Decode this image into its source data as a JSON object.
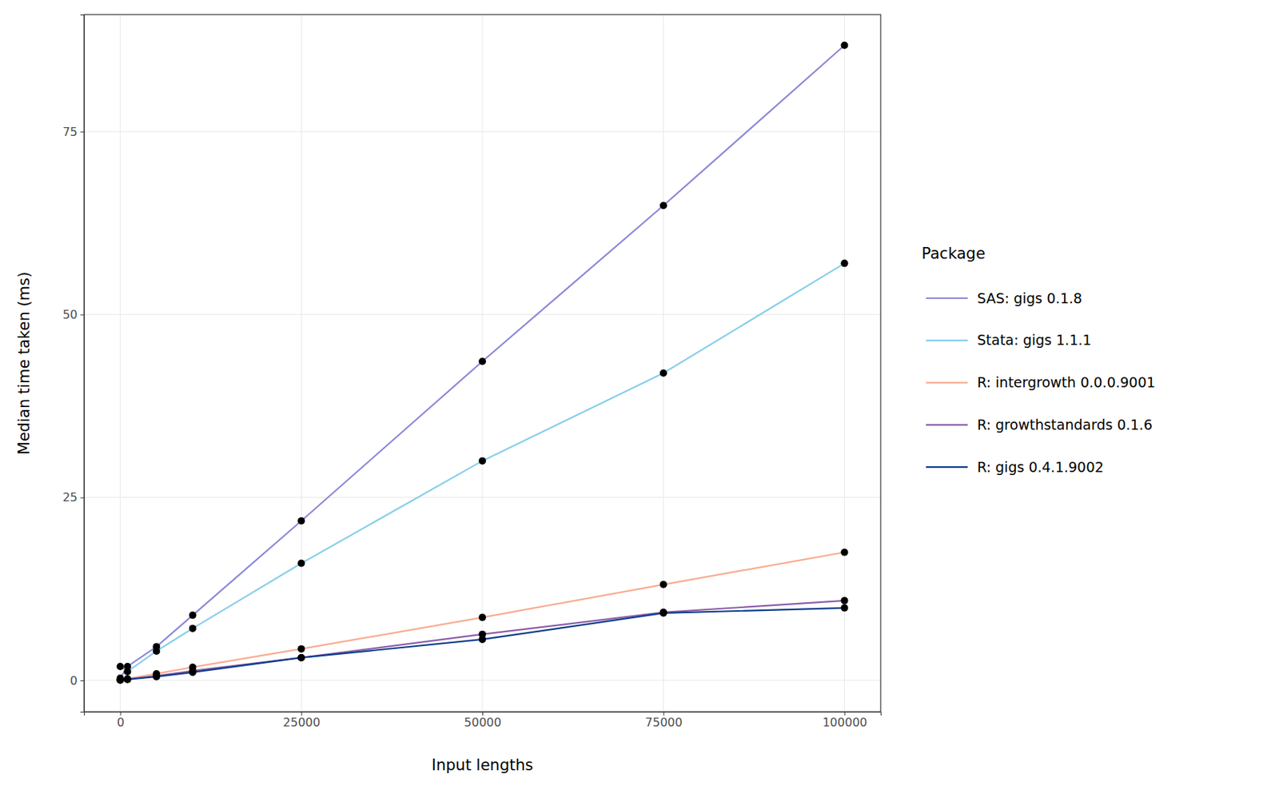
{
  "chart_data": {
    "type": "line",
    "x_label": "Input lengths",
    "y_label": "Median time taken (ms)",
    "legend_title": "Package",
    "legend": "right",
    "grid": true,
    "marker": "circle",
    "x": [
      0,
      1000,
      5000,
      10000,
      25000,
      50000,
      75000,
      100000
    ],
    "xlim": [
      -5000,
      105000
    ],
    "xticks": [
      0,
      25000,
      50000,
      75000,
      100000
    ],
    "ylim": [
      -4.3,
      91
    ],
    "yticks": [
      0,
      25,
      50,
      75
    ],
    "series": [
      {
        "name": "SAS: gigs 0.1.8",
        "color": "#8a87d9",
        "values": [
          0.3,
          1.9,
          4.6,
          8.9,
          21.8,
          43.6,
          64.9,
          86.8
        ]
      },
      {
        "name": "Stata: gigs 1.1.1",
        "color": "#87ceeb",
        "values": [
          1.9,
          1.2,
          4.0,
          7.1,
          16.0,
          30.0,
          42.0,
          57.0
        ]
      },
      {
        "name": "R: intergrowth 0.0.0.9001",
        "color": "#f9ac8f",
        "values": [
          0.05,
          0.2,
          0.9,
          1.8,
          4.3,
          8.6,
          13.1,
          17.5
        ]
      },
      {
        "name": "R: growthstandards 0.1.6",
        "color": "#8b5ea8",
        "values": [
          0.05,
          0.15,
          0.6,
          1.3,
          3.1,
          6.3,
          9.3,
          10.9
        ]
      },
      {
        "name": "R: gigs 0.4.1.9002",
        "color": "#0d3d8c",
        "values": [
          0.05,
          0.12,
          0.5,
          1.1,
          3.1,
          5.6,
          9.2,
          9.9
        ]
      }
    ]
  }
}
